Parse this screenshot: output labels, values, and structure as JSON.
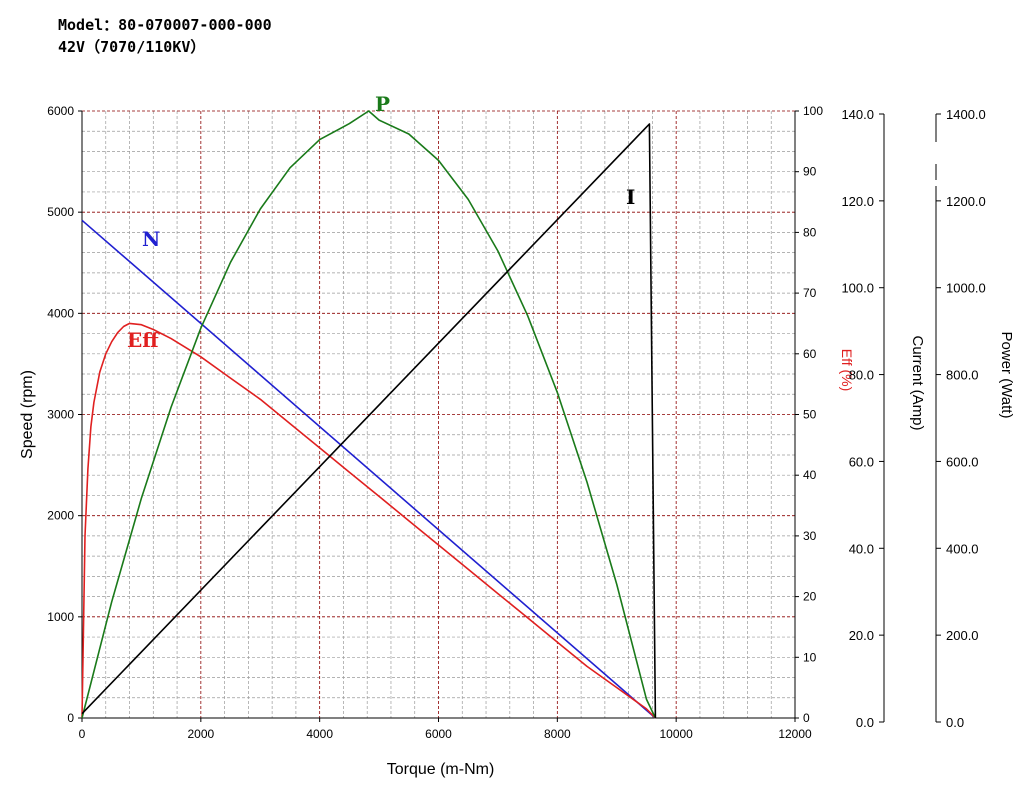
{
  "header": {
    "model": "Model：80-070007-000-000",
    "spec": "42V（7070/110KV）"
  },
  "colors": {
    "speed": "#2020d0",
    "efficiency": "#e02020",
    "power": "#1a7a1a",
    "current": "#000000",
    "grid": "#8b0000"
  },
  "chart_data": {
    "type": "line",
    "xlabel": "Torque (m-Nm)",
    "x_ticks": [
      0,
      2000,
      4000,
      6000,
      8000,
      10000,
      12000
    ],
    "xlim": [
      0,
      12000
    ],
    "grid": true,
    "axes": {
      "speed": {
        "label": "Speed (rpm)",
        "lim": [
          0,
          6000
        ],
        "ticks": [
          0,
          1000,
          2000,
          3000,
          4000,
          5000,
          6000
        ]
      },
      "efficiency": {
        "label": "Eff (%)",
        "lim": [
          0,
          100
        ],
        "ticks": [
          0,
          10,
          20,
          30,
          40,
          50,
          60,
          70,
          80,
          90,
          100
        ]
      },
      "current": {
        "label": "Current (Amp)",
        "lim": [
          0,
          140
        ],
        "ticks": [
          "0.0",
          "20.0",
          "40.0",
          "60.0",
          "80.0",
          "100.0",
          "120.0",
          "140.0"
        ]
      },
      "power": {
        "label": "Power (Watt)",
        "lim": [
          0,
          1400
        ],
        "ticks": [
          "0.0",
          "200.0",
          "400.0",
          "600.0",
          "800.0",
          "1000.0",
          "1200.0",
          "1400.0"
        ]
      }
    },
    "series": [
      {
        "name": "N",
        "axis": "speed",
        "x": [
          0,
          9650
        ],
        "y": [
          4920,
          0
        ]
      },
      {
        "name": "Eff",
        "axis": "efficiency",
        "x": [
          0,
          20,
          50,
          100,
          150,
          200,
          300,
          400,
          500,
          600,
          700,
          800,
          1000,
          1200,
          1500,
          2000,
          2500,
          3000,
          3500,
          4000,
          4500,
          5000,
          5500,
          6000,
          6500,
          7000,
          7500,
          8000,
          8500,
          9000,
          9500,
          9650
        ],
        "y": [
          0,
          12,
          30,
          41,
          48,
          52,
          57,
          60,
          62,
          63.5,
          64.5,
          65,
          64.8,
          64,
          62.5,
          59.5,
          56,
          52.5,
          48.5,
          44.5,
          40.5,
          36.5,
          32.5,
          28.5,
          24.5,
          20.5,
          16.5,
          12.5,
          8.5,
          5,
          1.5,
          0
        ]
      },
      {
        "name": "P",
        "axis": "power",
        "x": [
          0,
          500,
          1000,
          1500,
          2000,
          2500,
          3000,
          3500,
          4000,
          4500,
          4825,
          5000,
          5500,
          6000,
          6500,
          7000,
          7500,
          8000,
          8500,
          9000,
          9500,
          9650
        ],
        "y": [
          0,
          268,
          507,
          717,
          899,
          1051,
          1174,
          1269,
          1334,
          1371,
          1400,
          1379,
          1347,
          1286,
          1196,
          1077,
          928,
          751,
          544,
          308,
          43,
          0
        ]
      },
      {
        "name": "I",
        "axis": "current",
        "x": [
          0,
          9550,
          9650
        ],
        "y": [
          1,
          137,
          0
        ]
      }
    ]
  }
}
